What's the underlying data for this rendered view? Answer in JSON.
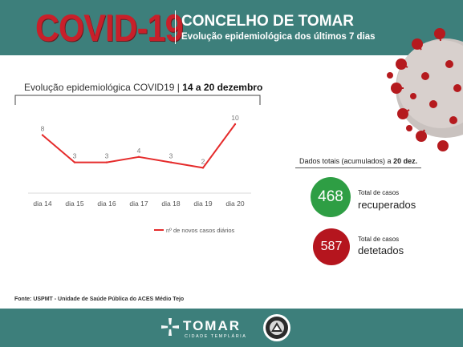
{
  "header": {
    "covid_title": "COVID-19",
    "title": "CONCELHO DE TOMAR",
    "subtitle": "Evolução epidemiológica dos últimos 7 dias"
  },
  "chart_title": {
    "prefix": "Evolução epidemiológica COVID19 |",
    "bold": "14  a 20 dezembro"
  },
  "chart_data": {
    "type": "line",
    "categories": [
      "dia 14",
      "dia 15",
      "dia 16",
      "dia 17",
      "dia 18",
      "dia 19",
      "dia 20"
    ],
    "series": [
      {
        "name": "nº de novos casos diários",
        "values": [
          8,
          3,
          3,
          4,
          3,
          2,
          10
        ]
      }
    ],
    "data_labels": [
      "8",
      "3",
      "3",
      "4",
      "3",
      "2",
      "10"
    ],
    "ylim": [
      0,
      10
    ],
    "grid": false,
    "legend_position": "bottom",
    "colors": {
      "line": "#e52b2b",
      "label": "#7a7a7a",
      "axis": "#d9d9d9"
    }
  },
  "totals": {
    "label_prefix": "Dados totais (acumulados) a",
    "label_bold": "20 dez.",
    "recovered_value": "468",
    "recovered_small": "Total de casos",
    "recovered_big": "recuperados",
    "detected_value": "587",
    "detected_small": "Total de casos",
    "detected_big": "detetados",
    "colors": {
      "recovered": "#2e9e44",
      "detected": "#b5151e"
    }
  },
  "source": "Fonte: USPMT - Unidade de Saúde Pública do ACES Médio Tejo",
  "footer": {
    "logo_word": "TOMAR",
    "logo_sub": "CIDADE TEMPLÁRIA",
    "colors": {
      "band": "#3d7f7b"
    }
  }
}
